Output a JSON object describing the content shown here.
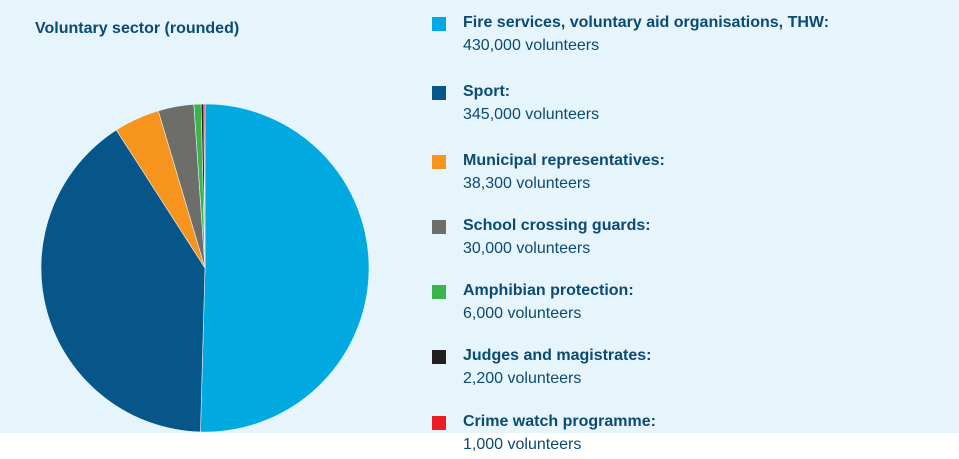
{
  "chart_data": {
    "type": "pie",
    "title": "Voluntary sector (rounded)",
    "unit_suffix": "volunteers",
    "slices": [
      {
        "label": "Fire services, voluntary aid organisations, THW:",
        "value": 430000,
        "value_text": "430,000",
        "color": "#00a9e0"
      },
      {
        "label": "Sport:",
        "value": 345000,
        "value_text": "345,000",
        "color": "#06568a"
      },
      {
        "label": "Municipal representatives:",
        "value": 38300,
        "value_text": "38,300",
        "color": "#f7941d"
      },
      {
        "label": "School crossing guards:",
        "value": 30000,
        "value_text": "30,000",
        "color": "#6d6e6a"
      },
      {
        "label": "Amphibian protection:",
        "value": 6000,
        "value_text": "6,000",
        "color": "#39b54a"
      },
      {
        "label": "Judges and magistrates:",
        "value": 2200,
        "value_text": "2,200",
        "color": "#231f20"
      },
      {
        "label": "Crime watch programme:",
        "value": 1000,
        "value_text": "1,000",
        "color": "#ed1c24"
      }
    ]
  }
}
